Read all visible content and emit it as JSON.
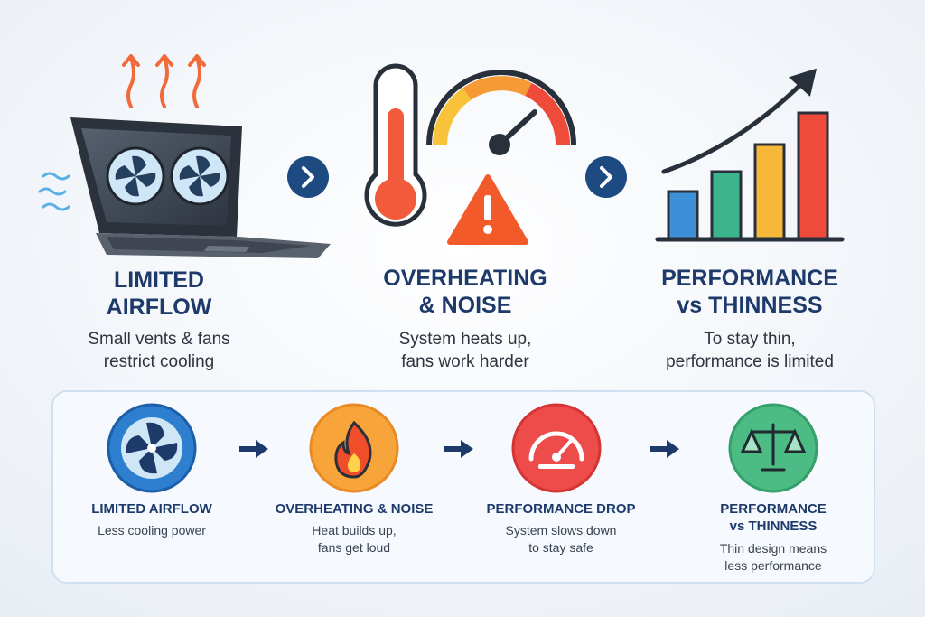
{
  "panels": [
    {
      "title_lines": [
        "LIMITED",
        "AIRFLOW"
      ],
      "text_lines": [
        "Small vents & fans",
        "restrict cooling"
      ]
    },
    {
      "title_lines": [
        "OVERHEATING",
        "& NOISE"
      ],
      "text_lines": [
        "System heats up,",
        "fans work harder"
      ]
    },
    {
      "title_lines": [
        "PERFORMANCE",
        "vs THINNESS"
      ],
      "text_lines": [
        "To stay thin,",
        "performance is limited"
      ]
    }
  ],
  "steps": [
    {
      "title_lines": [
        "LIMITED AIRFLOW"
      ],
      "text_lines": [
        "Less cooling power"
      ]
    },
    {
      "title_lines": [
        "OVERHEATING & NOISE"
      ],
      "text_lines": [
        "Heat builds up,",
        "fans get loud"
      ]
    },
    {
      "title_lines": [
        "PERFORMANCE DROP"
      ],
      "text_lines": [
        "System slows down",
        "to stay safe"
      ]
    },
    {
      "title_lines": [
        "PERFORMANCE",
        "vs THINNESS"
      ],
      "text_lines": [
        "Thin design means",
        "less performance"
      ]
    }
  ]
}
